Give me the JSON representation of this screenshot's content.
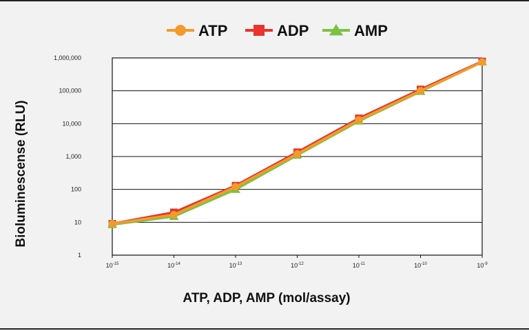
{
  "chart_data": {
    "type": "line",
    "title": "",
    "xlabel": "ATP, ADP, AMP (mol/assay)",
    "ylabel": "Bioluminescense (RLU)",
    "x_scale": "log",
    "y_scale": "log",
    "ylim": [
      1,
      1000000
    ],
    "x_ticks": [
      {
        "base": "10",
        "exp": "-15"
      },
      {
        "base": "10",
        "exp": "-14"
      },
      {
        "base": "10",
        "exp": "-13"
      },
      {
        "base": "10",
        "exp": "-12"
      },
      {
        "base": "10",
        "exp": "-11"
      },
      {
        "base": "10",
        "exp": "-10"
      },
      {
        "base": "10",
        "exp": "-9"
      }
    ],
    "y_ticks": [
      "1",
      "10",
      "100",
      "1,000",
      "10,000",
      "100,000",
      "1,000,000"
    ],
    "legend_position": "top-center",
    "grid": "horizontal",
    "x": [
      1e-15,
      1e-14,
      1e-13,
      1e-12,
      1e-11,
      1e-10,
      1e-09
    ],
    "series": [
      {
        "name": "ATP",
        "color": "#f39a2c",
        "marker": "circle",
        "values": [
          9,
          17,
          120,
          1200,
          13000,
          100000,
          750000
        ]
      },
      {
        "name": "ADP",
        "color": "#e8342a",
        "marker": "square",
        "values": [
          9,
          20,
          130,
          1350,
          14500,
          110000,
          780000
        ]
      },
      {
        "name": "AMP",
        "color": "#7cc242",
        "marker": "triangle",
        "values": [
          8.5,
          15,
          100,
          1100,
          12000,
          95000,
          760000
        ]
      }
    ]
  }
}
